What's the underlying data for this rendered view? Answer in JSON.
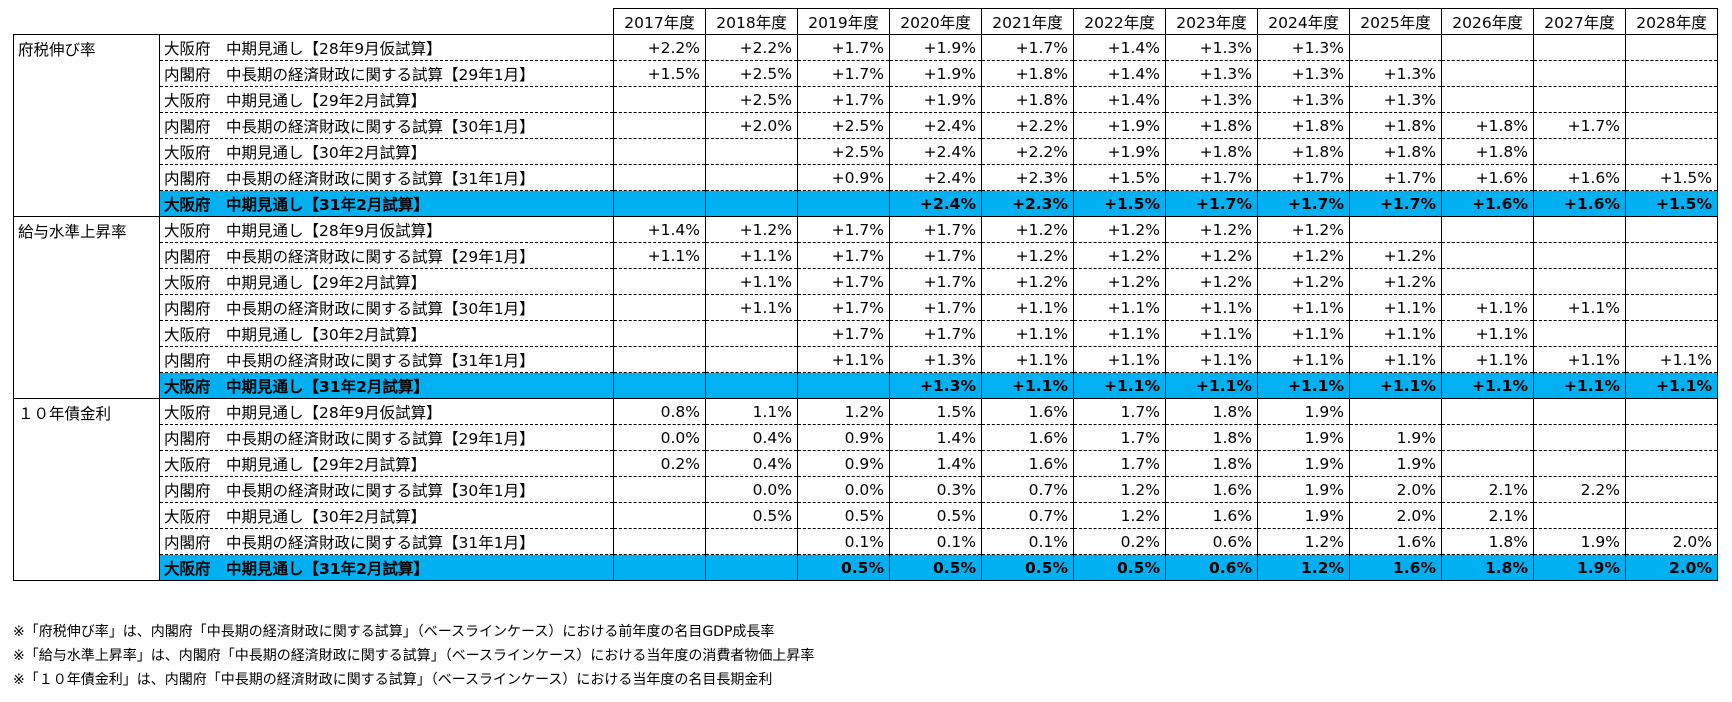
{
  "years": [
    "2017年度",
    "2018年度",
    "2019年度",
    "2020年度",
    "2021年度",
    "2022年度",
    "2023年度",
    "2024年度",
    "2025年度",
    "2026年度",
    "2027年度",
    "2028年度"
  ],
  "sections": [
    {
      "category": "府税伸び率",
      "rows": [
        {
          "label": "大阪府　中期見通し【28年9月仮試算】",
          "values": [
            "+2.2%",
            "+2.2%",
            "+1.7%",
            "+1.9%",
            "+1.7%",
            "+1.4%",
            "+1.3%",
            "+1.3%",
            "",
            "",
            "",
            ""
          ],
          "highlight": false
        },
        {
          "label": "内閣府　中長期の経済財政に関する試算【29年1月】",
          "values": [
            "+1.5%",
            "+2.5%",
            "+1.7%",
            "+1.9%",
            "+1.8%",
            "+1.4%",
            "+1.3%",
            "+1.3%",
            "+1.3%",
            "",
            "",
            ""
          ],
          "highlight": false
        },
        {
          "label": "大阪府　中期見通し【29年2月試算】",
          "values": [
            "",
            "+2.5%",
            "+1.7%",
            "+1.9%",
            "+1.8%",
            "+1.4%",
            "+1.3%",
            "+1.3%",
            "+1.3%",
            "",
            "",
            ""
          ],
          "highlight": false
        },
        {
          "label": "内閣府　中長期の経済財政に関する試算【30年1月】",
          "values": [
            "",
            "+2.0%",
            "+2.5%",
            "+2.4%",
            "+2.2%",
            "+1.9%",
            "+1.8%",
            "+1.8%",
            "+1.8%",
            "+1.8%",
            "+1.7%",
            ""
          ],
          "highlight": false
        },
        {
          "label": "大阪府　中期見通し【30年2月試算】",
          "values": [
            "",
            "",
            "+2.5%",
            "+2.4%",
            "+2.2%",
            "+1.9%",
            "+1.8%",
            "+1.8%",
            "+1.8%",
            "+1.8%",
            "",
            ""
          ],
          "highlight": false
        },
        {
          "label": "内閣府　中長期の経済財政に関する試算【31年1月】",
          "values": [
            "",
            "",
            "+0.9%",
            "+2.4%",
            "+2.3%",
            "+1.5%",
            "+1.7%",
            "+1.7%",
            "+1.7%",
            "+1.6%",
            "+1.6%",
            "+1.5%"
          ],
          "highlight": false
        },
        {
          "label": "大阪府　中期見通し【31年2月試算】",
          "values": [
            "",
            "",
            "",
            "+2.4%",
            "+2.3%",
            "+1.5%",
            "+1.7%",
            "+1.7%",
            "+1.7%",
            "+1.6%",
            "+1.6%",
            "+1.5%"
          ],
          "highlight": true
        }
      ]
    },
    {
      "category": "給与水準上昇率",
      "rows": [
        {
          "label": "大阪府　中期見通し【28年9月仮試算】",
          "values": [
            "+1.4%",
            "+1.2%",
            "+1.7%",
            "+1.7%",
            "+1.2%",
            "+1.2%",
            "+1.2%",
            "+1.2%",
            "",
            "",
            "",
            ""
          ],
          "highlight": false
        },
        {
          "label": "内閣府　中長期の経済財政に関する試算【29年1月】",
          "values": [
            "+1.1%",
            "+1.1%",
            "+1.7%",
            "+1.7%",
            "+1.2%",
            "+1.2%",
            "+1.2%",
            "+1.2%",
            "+1.2%",
            "",
            "",
            ""
          ],
          "highlight": false
        },
        {
          "label": "大阪府　中期見通し【29年2月試算】",
          "values": [
            "",
            "+1.1%",
            "+1.7%",
            "+1.7%",
            "+1.2%",
            "+1.2%",
            "+1.2%",
            "+1.2%",
            "+1.2%",
            "",
            "",
            ""
          ],
          "highlight": false
        },
        {
          "label": "内閣府　中長期の経済財政に関する試算【30年1月】",
          "values": [
            "",
            "+1.1%",
            "+1.7%",
            "+1.7%",
            "+1.1%",
            "+1.1%",
            "+1.1%",
            "+1.1%",
            "+1.1%",
            "+1.1%",
            "+1.1%",
            ""
          ],
          "highlight": false
        },
        {
          "label": "大阪府　中期見通し【30年2月試算】",
          "values": [
            "",
            "",
            "+1.7%",
            "+1.7%",
            "+1.1%",
            "+1.1%",
            "+1.1%",
            "+1.1%",
            "+1.1%",
            "+1.1%",
            "",
            ""
          ],
          "highlight": false
        },
        {
          "label": "内閣府　中長期の経済財政に関する試算【31年1月】",
          "values": [
            "",
            "",
            "+1.1%",
            "+1.3%",
            "+1.1%",
            "+1.1%",
            "+1.1%",
            "+1.1%",
            "+1.1%",
            "+1.1%",
            "+1.1%",
            "+1.1%"
          ],
          "highlight": false
        },
        {
          "label": "大阪府　中期見通し【31年2月試算】",
          "values": [
            "",
            "",
            "",
            "+1.3%",
            "+1.1%",
            "+1.1%",
            "+1.1%",
            "+1.1%",
            "+1.1%",
            "+1.1%",
            "+1.1%",
            "+1.1%"
          ],
          "highlight": true
        }
      ]
    },
    {
      "category": "１０年債金利",
      "rows": [
        {
          "label": "大阪府　中期見通し【28年9月仮試算】",
          "values": [
            "0.8%",
            "1.1%",
            "1.2%",
            "1.5%",
            "1.6%",
            "1.7%",
            "1.8%",
            "1.9%",
            "",
            "",
            "",
            ""
          ],
          "highlight": false
        },
        {
          "label": "内閣府　中長期の経済財政に関する試算【29年1月】",
          "values": [
            "0.0%",
            "0.4%",
            "0.9%",
            "1.4%",
            "1.6%",
            "1.7%",
            "1.8%",
            "1.9%",
            "1.9%",
            "",
            "",
            ""
          ],
          "highlight": false
        },
        {
          "label": "大阪府　中期見通し【29年2月試算】",
          "values": [
            "0.2%",
            "0.4%",
            "0.9%",
            "1.4%",
            "1.6%",
            "1.7%",
            "1.8%",
            "1.9%",
            "1.9%",
            "",
            "",
            ""
          ],
          "highlight": false
        },
        {
          "label": "内閣府　中長期の経済財政に関する試算【30年1月】",
          "values": [
            "",
            "0.0%",
            "0.0%",
            "0.3%",
            "0.7%",
            "1.2%",
            "1.6%",
            "1.9%",
            "2.0%",
            "2.1%",
            "2.2%",
            ""
          ],
          "highlight": false
        },
        {
          "label": "大阪府　中期見通し【30年2月試算】",
          "values": [
            "",
            "0.5%",
            "0.5%",
            "0.5%",
            "0.7%",
            "1.2%",
            "1.6%",
            "1.9%",
            "2.0%",
            "2.1%",
            "",
            ""
          ],
          "highlight": false
        },
        {
          "label": "内閣府　中長期の経済財政に関する試算【31年1月】",
          "values": [
            "",
            "",
            "0.1%",
            "0.1%",
            "0.1%",
            "0.2%",
            "0.6%",
            "1.2%",
            "1.6%",
            "1.8%",
            "1.9%",
            "2.0%"
          ],
          "highlight": false
        },
        {
          "label": "大阪府　中期見通し【31年2月試算】",
          "values": [
            "",
            "",
            "0.5%",
            "0.5%",
            "0.5%",
            "0.5%",
            "0.6%",
            "1.2%",
            "1.6%",
            "1.8%",
            "1.9%",
            "2.0%"
          ],
          "highlight": true
        }
      ]
    }
  ],
  "notes": [
    "※「府税伸び率」は、内閣府「中長期の経済財政に関する試算」（ベースラインケース）における前年度の名目GDP成長率",
    "※「給与水準上昇率」は、内閣府「中長期の経済財政に関する試算」（ベースラインケース）における当年度の消費者物価上昇率",
    "※「１０年債金利」は、内閣府「中長期の経済財政に関する試算」（ベースラインケース）における当年度の名目長期金利"
  ],
  "colors": {
    "highlight": "#00b0f0"
  }
}
